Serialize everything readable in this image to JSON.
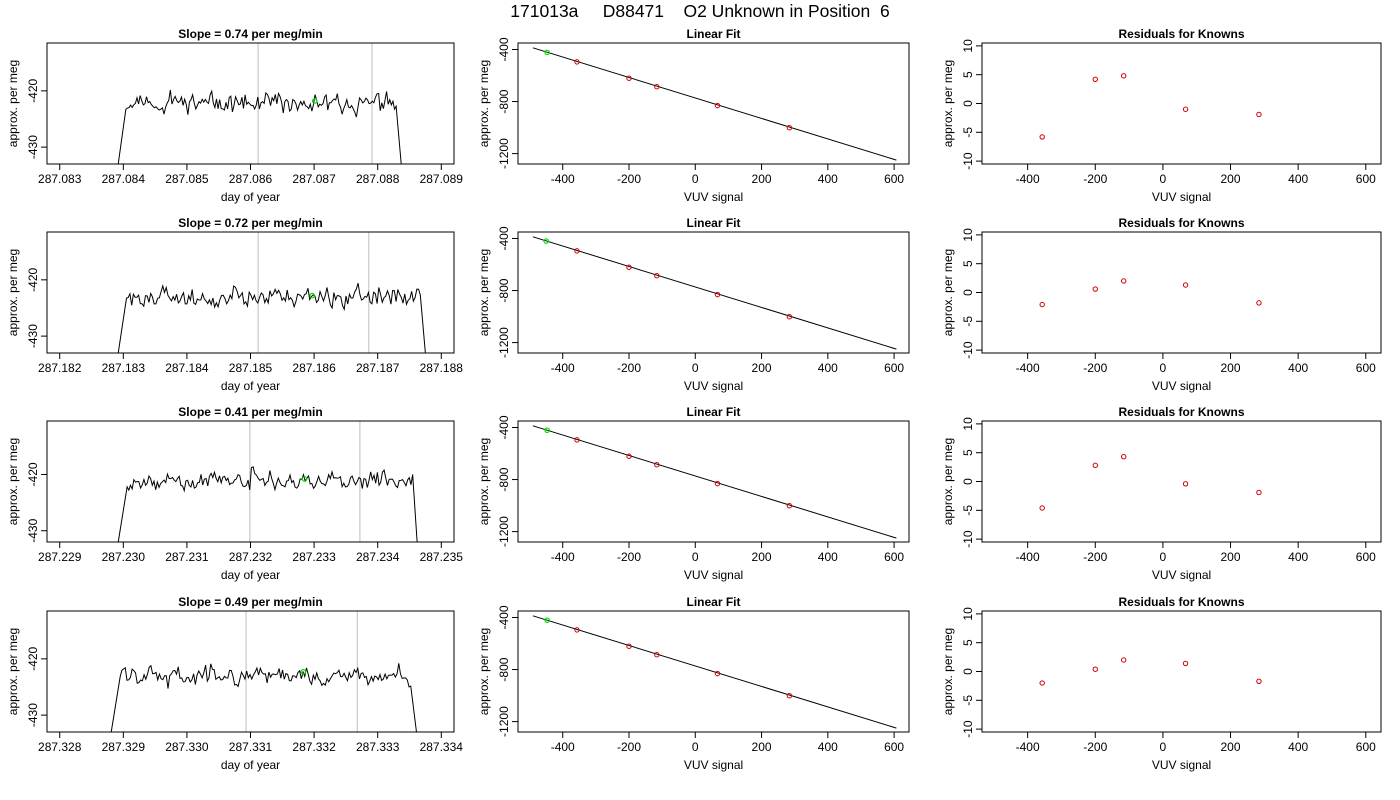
{
  "title": "171013a     D88471    O2 Unknown in Position  6",
  "colors": {
    "trace": "#000000",
    "marker": "#00dd00",
    "refline": "#c8c8c8",
    "knowns": "#cc0000",
    "fitline": "#000000"
  },
  "chart_data": [
    {
      "type": "line",
      "row": 1,
      "title": "Slope =  0.74  per meg/min",
      "xlabel": "day of year",
      "ylabel": "approx. per meg",
      "xlim": [
        287.0828,
        287.0892
      ],
      "ylim": [
        -433,
        -411.5
      ],
      "xticks": [
        "287.083",
        "287.084",
        "287.085",
        "287.086",
        "287.087",
        "287.088",
        "287.089"
      ],
      "yticks": [
        "-420",
        "-430"
      ],
      "vlines": [
        287.08612,
        287.08791
      ],
      "marker": {
        "x": 287.08701,
        "y": -421.8
      },
      "trace": {
        "x_start": 287.08392,
        "x_end": 287.08837,
        "y_start": -433,
        "y_end": -433,
        "level": -422.3,
        "noise": 2.3,
        "plateau_start": 287.08404,
        "plateau_end": 287.08829,
        "seed": 11
      }
    },
    {
      "type": "scatter",
      "row": 1,
      "title": "Linear Fit",
      "xlabel": "VUV signal",
      "ylabel": "approx. per meg",
      "xlim": [
        -535,
        645
      ],
      "ylim": [
        -1280,
        -350
      ],
      "xticks": [
        -400,
        -200,
        0,
        200,
        400,
        600
      ],
      "yticks": [
        -400,
        -800,
        -1200
      ],
      "fit_line": {
        "x": [
          -490,
          607
        ],
        "y": [
          -387,
          -1250
        ]
      },
      "unknown_point": {
        "x": -447,
        "y": -422
      },
      "known_points": {
        "x": [
          -357,
          -200,
          -116,
          67,
          284
        ],
        "y": [
          -495,
          -621,
          -686,
          -831,
          -1001
        ]
      }
    },
    {
      "type": "scatter",
      "row": 1,
      "title": "Residuals for Knowns",
      "xlabel": "VUV signal",
      "ylabel": "approx. per meg",
      "xlim": [
        -535,
        645
      ],
      "ylim": [
        -10.5,
        10.5
      ],
      "xticks": [
        -400,
        -200,
        0,
        200,
        400,
        600
      ],
      "yticks": [
        -10,
        -5,
        0,
        5,
        10
      ],
      "points": {
        "x": [
          -357,
          -200,
          -116,
          67,
          284
        ],
        "y": [
          -5.8,
          4.2,
          4.8,
          -1.0,
          -1.9
        ]
      }
    },
    {
      "type": "line",
      "row": 2,
      "title": "Slope =  0.72  per meg/min",
      "xlabel": "day of year",
      "ylabel": "approx. per meg",
      "xlim": [
        287.1818,
        287.1882
      ],
      "ylim": [
        -433,
        -411.5
      ],
      "xticks": [
        "287.182",
        "287.183",
        "287.184",
        "287.185",
        "287.186",
        "287.187",
        "287.188"
      ],
      "yticks": [
        "-420",
        "-430"
      ],
      "vlines": [
        287.18512,
        287.18686
      ],
      "marker": {
        "x": 287.18597,
        "y": -422.8
      },
      "trace": {
        "x_start": 287.18292,
        "x_end": 287.18775,
        "y_start": -433,
        "y_end": -433,
        "level": -423.2,
        "noise": 2.2,
        "plateau_start": 287.18305,
        "plateau_end": 287.18767,
        "seed": 27
      }
    },
    {
      "type": "scatter",
      "row": 2,
      "title": "Linear Fit",
      "xlabel": "VUV signal",
      "ylabel": "approx. per meg",
      "xlim": [
        -535,
        645
      ],
      "ylim": [
        -1280,
        -350
      ],
      "xticks": [
        -400,
        -200,
        0,
        200,
        400,
        600
      ],
      "yticks": [
        -400,
        -800,
        -1200
      ],
      "fit_line": {
        "x": [
          -490,
          607
        ],
        "y": [
          -387,
          -1250
        ]
      },
      "unknown_point": {
        "x": -450,
        "y": -420
      },
      "known_points": {
        "x": [
          -357,
          -200,
          -116,
          67,
          284
        ],
        "y": [
          -495,
          -621,
          -686,
          -831,
          -1001
        ]
      }
    },
    {
      "type": "scatter",
      "row": 2,
      "title": "Residuals for Knowns",
      "xlabel": "VUV signal",
      "ylabel": "approx. per meg",
      "xlim": [
        -535,
        645
      ],
      "ylim": [
        -10.5,
        10.5
      ],
      "xticks": [
        -400,
        -200,
        0,
        200,
        400,
        600
      ],
      "yticks": [
        -10,
        -5,
        0,
        5,
        10
      ],
      "points": {
        "x": [
          -357,
          -200,
          -116,
          67,
          284
        ],
        "y": [
          -2.1,
          0.6,
          2.0,
          1.3,
          -1.8
        ]
      }
    },
    {
      "type": "line",
      "row": 3,
      "title": "Slope =  0.41  per meg/min",
      "xlabel": "day of year",
      "ylabel": "approx. per meg",
      "xlim": [
        287.2288,
        287.2352
      ],
      "ylim": [
        -432,
        -410.5
      ],
      "xticks": [
        "287.229",
        "287.230",
        "287.231",
        "287.232",
        "287.233",
        "287.234",
        "287.235"
      ],
      "yticks": [
        "-420",
        "-430"
      ],
      "vlines": [
        287.23199,
        287.23372
      ],
      "marker": {
        "x": 287.23285,
        "y": -420.8
      },
      "trace": {
        "x_start": 287.22992,
        "x_end": 287.23462,
        "y_start": -432,
        "y_end": -432,
        "level": -421.2,
        "noise": 2.0,
        "plateau_start": 287.23006,
        "plateau_end": 287.23455,
        "seed": 43
      }
    },
    {
      "type": "scatter",
      "row": 3,
      "title": "Linear Fit",
      "xlabel": "VUV signal",
      "ylabel": "approx. per meg",
      "xlim": [
        -535,
        645
      ],
      "ylim": [
        -1280,
        -350
      ],
      "xticks": [
        -400,
        -200,
        0,
        200,
        400,
        600
      ],
      "yticks": [
        -400,
        -800,
        -1200
      ],
      "fit_line": {
        "x": [
          -490,
          607
        ],
        "y": [
          -387,
          -1250
        ]
      },
      "unknown_point": {
        "x": -447,
        "y": -421
      },
      "known_points": {
        "x": [
          -357,
          -200,
          -116,
          67,
          284
        ],
        "y": [
          -495,
          -621,
          -686,
          -831,
          -1001
        ]
      }
    },
    {
      "type": "scatter",
      "row": 3,
      "title": "Residuals for Knowns",
      "xlabel": "VUV signal",
      "ylabel": "approx. per meg",
      "xlim": [
        -535,
        645
      ],
      "ylim": [
        -10.5,
        10.5
      ],
      "xticks": [
        -400,
        -200,
        0,
        200,
        400,
        600
      ],
      "yticks": [
        -10,
        -5,
        0,
        5,
        10
      ],
      "points": {
        "x": [
          -357,
          -200,
          -116,
          67,
          284
        ],
        "y": [
          -4.6,
          2.8,
          4.3,
          -0.4,
          -1.9
        ]
      }
    },
    {
      "type": "line",
      "row": 4,
      "title": "Slope =  0.49  per meg/min",
      "xlabel": "day of year",
      "ylabel": "approx. per meg",
      "xlim": [
        287.3278,
        287.3342
      ],
      "ylim": [
        -433,
        -411.5
      ],
      "xticks": [
        "287.328",
        "287.329",
        "287.330",
        "287.331",
        "287.332",
        "287.333",
        "287.334"
      ],
      "yticks": [
        "-420",
        "-430"
      ],
      "vlines": [
        287.33093,
        287.33268
      ],
      "marker": {
        "x": 287.33183,
        "y": -422.3
      },
      "trace": {
        "x_start": 287.32881,
        "x_end": 287.33361,
        "y_start": -433,
        "y_end": -433,
        "level": -423.0,
        "noise": 2.1,
        "plateau_start": 287.32895,
        "plateau_end": 287.33352,
        "seed": 59
      }
    },
    {
      "type": "scatter",
      "row": 4,
      "title": "Linear Fit",
      "xlabel": "VUV signal",
      "ylabel": "approx. per meg",
      "xlim": [
        -535,
        645
      ],
      "ylim": [
        -1280,
        -350
      ],
      "xticks": [
        -400,
        -200,
        0,
        200,
        400,
        600
      ],
      "yticks": [
        -400,
        -800,
        -1200
      ],
      "fit_line": {
        "x": [
          -490,
          607
        ],
        "y": [
          -387,
          -1250
        ]
      },
      "unknown_point": {
        "x": -447,
        "y": -421
      },
      "known_points": {
        "x": [
          -357,
          -200,
          -116,
          67,
          284
        ],
        "y": [
          -495,
          -621,
          -686,
          -831,
          -1001
        ]
      }
    },
    {
      "type": "scatter",
      "row": 4,
      "title": "Residuals for Knowns",
      "xlabel": "VUV signal",
      "ylabel": "approx. per meg",
      "xlim": [
        -535,
        645
      ],
      "ylim": [
        -10.5,
        10.5
      ],
      "xticks": [
        -400,
        -200,
        0,
        200,
        400,
        600
      ],
      "yticks": [
        -10,
        -5,
        0,
        5,
        10
      ],
      "points": {
        "x": [
          -357,
          -200,
          -116,
          67,
          284
        ],
        "y": [
          -2.0,
          0.4,
          2.0,
          1.4,
          -1.7
        ]
      }
    }
  ]
}
